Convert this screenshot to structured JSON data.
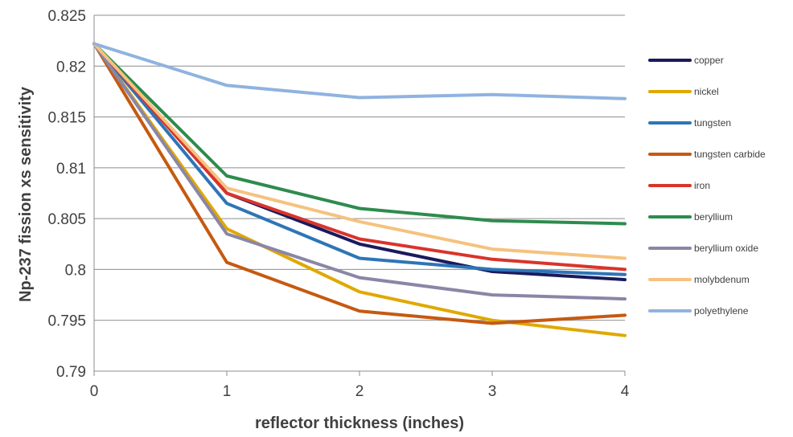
{
  "chart_data": {
    "type": "line",
    "xlabel": "reflector thickness (inches)",
    "ylabel": "Np-237 fission xs sensitivity",
    "x": [
      0,
      1,
      2,
      3,
      4
    ],
    "xlim": [
      0,
      4
    ],
    "ylim": [
      0.79,
      0.825
    ],
    "x_ticks": [
      "0",
      "1",
      "2",
      "3",
      "4"
    ],
    "y_ticks": [
      "0.79",
      "0.795",
      "0.8",
      "0.805",
      "0.81",
      "0.815",
      "0.82",
      "0.825"
    ],
    "grid": "horizontal",
    "legend_position": "right",
    "series": [
      {
        "name": "copper",
        "color": "#1a1a5e",
        "values": [
          0.8222,
          0.8075,
          0.8025,
          0.7998,
          0.799
        ]
      },
      {
        "name": "nickel",
        "color": "#e0a800",
        "values": [
          0.8222,
          0.804,
          0.7978,
          0.795,
          0.7935
        ]
      },
      {
        "name": "tungsten",
        "color": "#2e75b6",
        "values": [
          0.8222,
          0.8065,
          0.8011,
          0.8,
          0.7995
        ]
      },
      {
        "name": "tungsten carbide",
        "color": "#c55a11",
        "values": [
          0.8222,
          0.8007,
          0.7959,
          0.7947,
          0.7955
        ]
      },
      {
        "name": "iron",
        "color": "#d9342b",
        "values": [
          0.8222,
          0.8075,
          0.803,
          0.801,
          0.8
        ]
      },
      {
        "name": "beryllium",
        "color": "#2e8b4e",
        "values": [
          0.8222,
          0.8092,
          0.806,
          0.8048,
          0.8045
        ]
      },
      {
        "name": "beryllium oxide",
        "color": "#8a86a6",
        "values": [
          0.8222,
          0.8035,
          0.7992,
          0.7975,
          0.7971
        ]
      },
      {
        "name": "molybdenum",
        "color": "#f5c27f",
        "values": [
          0.8222,
          0.808,
          0.8047,
          0.802,
          0.8011
        ]
      },
      {
        "name": "polyethylene",
        "color": "#8fb3e0",
        "values": [
          0.8222,
          0.8181,
          0.8169,
          0.8172,
          0.8168
        ]
      }
    ]
  }
}
